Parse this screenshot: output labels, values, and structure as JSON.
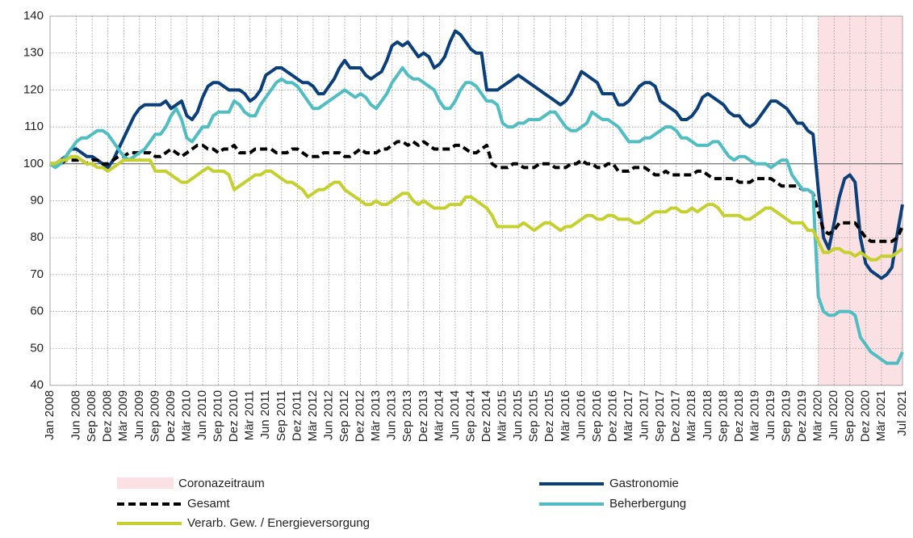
{
  "chart_data": {
    "type": "line",
    "categories": [
      "Jan 2008",
      null,
      null,
      null,
      null,
      "Jun 2008",
      null,
      null,
      "Sep 2008",
      null,
      null,
      "Dez 2008",
      null,
      null,
      "Mär 2009",
      null,
      null,
      "Jun 2009",
      null,
      null,
      "Sep 2009",
      null,
      null,
      "Dez 2009",
      null,
      null,
      "Mär 2010",
      null,
      null,
      "Jun 2010",
      null,
      null,
      "Sep 2010",
      null,
      null,
      "Dez 2010",
      null,
      null,
      "Mär 2011",
      null,
      null,
      "Jun 2011",
      null,
      null,
      "Sep 2011",
      null,
      null,
      "Dez 2011",
      null,
      null,
      "Mär 2012",
      null,
      null,
      "Jun 2012",
      null,
      null,
      "Sep 2012",
      null,
      null,
      "Dez 2012",
      null,
      null,
      "Mär 2013",
      null,
      null,
      "Jun 2013",
      null,
      null,
      "Sep 2013",
      null,
      null,
      "Dez 2013",
      null,
      null,
      "Mär 2014",
      null,
      null,
      "Jun 2014",
      null,
      null,
      "Sep 2014",
      null,
      null,
      "Dez 2014",
      null,
      null,
      "Mär 2015",
      null,
      null,
      "Jun 2015",
      null,
      null,
      "Sep 2015",
      null,
      null,
      "Dez 2015",
      null,
      null,
      "Mär 2016",
      null,
      null,
      "Jun 2016",
      null,
      null,
      "Sep 2016",
      null,
      null,
      "Dez 2016",
      null,
      null,
      "Mär 2017",
      null,
      null,
      "Jun 2017",
      null,
      null,
      "Sep 2017",
      null,
      null,
      "Dez 2017",
      null,
      null,
      "Mär 2018",
      null,
      null,
      "Jun 2018",
      null,
      null,
      "Sep 2018",
      null,
      null,
      "Dez 2018",
      null,
      null,
      "Mär 2019",
      null,
      null,
      "Jun 2019",
      null,
      null,
      "Sep 2019",
      null,
      null,
      "Dez 2019",
      null,
      null,
      "Mär 2020",
      null,
      null,
      "Jun 2020",
      null,
      null,
      "Sep 2020",
      null,
      null,
      "Dez 2020",
      null,
      null,
      "Mär 2021",
      null,
      null,
      null,
      "Jul 2021"
    ],
    "series": [
      {
        "name": "Gastronomie",
        "color": "#0b3f7a",
        "dash": false,
        "values": [
          100,
          100,
          101,
          102,
          104,
          104,
          103,
          102,
          102,
          101,
          100,
          99,
          101,
          104,
          107,
          110,
          113,
          115,
          116,
          116,
          116,
          116,
          117,
          115,
          116,
          117,
          113,
          112,
          114,
          118,
          121,
          122,
          122,
          121,
          120,
          120,
          120,
          119,
          117,
          118,
          120,
          124,
          125,
          126,
          126,
          125,
          124,
          123,
          122,
          122,
          121,
          119,
          119,
          121,
          123,
          126,
          128,
          126,
          126,
          126,
          124,
          123,
          124,
          125,
          128,
          132,
          133,
          132,
          133,
          131,
          129,
          130,
          129,
          126,
          127,
          129,
          133,
          136,
          135,
          133,
          131,
          130,
          130,
          120,
          120,
          120,
          121,
          122,
          123,
          124,
          123,
          122,
          121,
          120,
          119,
          118,
          117,
          116,
          117,
          119,
          122,
          125,
          124,
          123,
          122,
          119,
          119,
          119,
          116,
          116,
          117,
          119,
          121,
          122,
          122,
          121,
          117,
          116,
          115,
          114,
          112,
          112,
          113,
          115,
          118,
          119,
          118,
          117,
          116,
          114,
          113,
          113,
          111,
          110,
          111,
          113,
          115,
          117,
          117,
          116,
          115,
          113,
          111,
          111,
          109,
          108,
          93,
          80,
          77,
          84,
          91,
          96,
          97,
          95,
          80,
          73,
          71,
          70,
          69,
          70,
          72,
          81,
          89
        ]
      },
      {
        "name": "Gesamt",
        "color": "#000000",
        "dash": true,
        "values": [
          100,
          100,
          100,
          101,
          101,
          101,
          101,
          100,
          101,
          101,
          100,
          100,
          101,
          102,
          102,
          103,
          103,
          103,
          103,
          103,
          102,
          102,
          103,
          104,
          103,
          102,
          103,
          104,
          105,
          105,
          104,
          104,
          103,
          104,
          104,
          105,
          103,
          103,
          103,
          104,
          104,
          104,
          104,
          103,
          103,
          103,
          104,
          104,
          103,
          102,
          102,
          102,
          103,
          103,
          103,
          103,
          102,
          102,
          103,
          104,
          103,
          103,
          103,
          104,
          104,
          105,
          106,
          106,
          105,
          106,
          105,
          106,
          105,
          104,
          104,
          104,
          104,
          105,
          105,
          104,
          103,
          103,
          104,
          105,
          100,
          99,
          99,
          99,
          100,
          100,
          99,
          99,
          99,
          100,
          100,
          100,
          99,
          99,
          99,
          100,
          100,
          101,
          100,
          100,
          99,
          99,
          100,
          100,
          98,
          98,
          98,
          99,
          99,
          99,
          98,
          97,
          97,
          98,
          97,
          97,
          97,
          97,
          97,
          98,
          98,
          97,
          96,
          96,
          96,
          96,
          96,
          95,
          95,
          95,
          96,
          96,
          96,
          96,
          95,
          94,
          94,
          94,
          94,
          93,
          93,
          92,
          87,
          82,
          81,
          82,
          84,
          84,
          84,
          84,
          82,
          80,
          79,
          79,
          79,
          79,
          79,
          80,
          83
        ]
      },
      {
        "name": "Beherbergung",
        "color": "#4fbdc2",
        "dash": false,
        "values": [
          100,
          99,
          100,
          102,
          104,
          106,
          107,
          107,
          108,
          109,
          109,
          108,
          106,
          104,
          102,
          101,
          102,
          103,
          104,
          106,
          108,
          108,
          110,
          113,
          115,
          112,
          107,
          106,
          108,
          110,
          110,
          113,
          114,
          114,
          114,
          117,
          116,
          114,
          113,
          113,
          116,
          118,
          120,
          122,
          123,
          122,
          122,
          121,
          119,
          117,
          115,
          115,
          116,
          117,
          118,
          119,
          120,
          119,
          118,
          119,
          118,
          116,
          115,
          117,
          119,
          122,
          124,
          126,
          124,
          123,
          123,
          122,
          121,
          120,
          117,
          115,
          115,
          117,
          120,
          122,
          122,
          121,
          119,
          117,
          117,
          116,
          111,
          110,
          110,
          111,
          111,
          112,
          112,
          112,
          113,
          114,
          114,
          112,
          110,
          109,
          109,
          110,
          111,
          114,
          113,
          112,
          112,
          111,
          110,
          108,
          106,
          106,
          106,
          107,
          107,
          108,
          109,
          110,
          110,
          109,
          107,
          107,
          106,
          105,
          105,
          105,
          106,
          106,
          104,
          102,
          101,
          102,
          102,
          101,
          100,
          100,
          100,
          99,
          100,
          101,
          101,
          97,
          95,
          93,
          93,
          92,
          64,
          60,
          59,
          59,
          60,
          60,
          60,
          59,
          53,
          51,
          49,
          48,
          47,
          46,
          46,
          46,
          49
        ]
      },
      {
        "name": "Verarb. Gew. / Energieversorgung",
        "color": "#c5d02e",
        "dash": false,
        "values": [
          100,
          100,
          101,
          101,
          102,
          102,
          101,
          100,
          100,
          99,
          99,
          98,
          99,
          100,
          101,
          101,
          101,
          101,
          101,
          101,
          98,
          98,
          98,
          97,
          96,
          95,
          95,
          96,
          97,
          98,
          99,
          98,
          98,
          98,
          97,
          93,
          94,
          95,
          96,
          97,
          97,
          98,
          98,
          97,
          96,
          95,
          95,
          94,
          93,
          91,
          92,
          93,
          93,
          94,
          95,
          95,
          93,
          92,
          91,
          90,
          89,
          89,
          90,
          89,
          89,
          90,
          91,
          92,
          92,
          90,
          89,
          90,
          89,
          88,
          88,
          88,
          89,
          89,
          89,
          91,
          91,
          90,
          89,
          88,
          86,
          83,
          83,
          83,
          83,
          83,
          84,
          83,
          82,
          83,
          84,
          84,
          83,
          82,
          83,
          83,
          84,
          85,
          86,
          86,
          85,
          85,
          86,
          86,
          85,
          85,
          85,
          84,
          84,
          85,
          86,
          87,
          87,
          87,
          88,
          88,
          87,
          87,
          88,
          87,
          88,
          89,
          89,
          88,
          86,
          86,
          86,
          86,
          85,
          85,
          86,
          87,
          88,
          88,
          87,
          86,
          85,
          84,
          84,
          84,
          82,
          82,
          79,
          76,
          76,
          77,
          77,
          76,
          76,
          75,
          76,
          75,
          74,
          74,
          75,
          75,
          75,
          76,
          77
        ]
      }
    ],
    "highlight": {
      "name": "Coronazeitraum",
      "color": "#fbe1e4",
      "start": "Mär 2020",
      "end": "Jul 2021"
    },
    "hline": 100,
    "ylim": [
      40,
      140
    ],
    "yticks": [
      40,
      50,
      60,
      70,
      80,
      90,
      100,
      110,
      120,
      130,
      140
    ],
    "grid": true
  }
}
